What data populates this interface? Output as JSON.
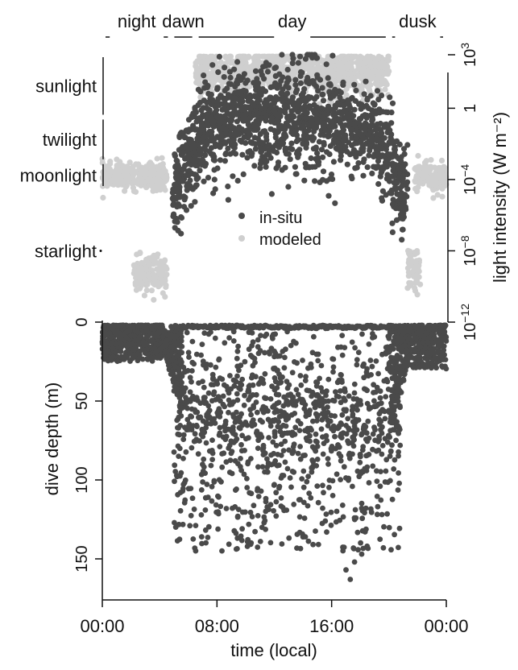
{
  "chart_data": [
    {
      "type": "scatter",
      "panel": "light",
      "phases": [
        {
          "label": "night",
          "start": 0.0,
          "end": 4.8
        },
        {
          "label": "dawn",
          "start": 4.8,
          "end": 6.5
        },
        {
          "label": "day",
          "start": 6.5,
          "end": 20.0
        },
        {
          "label": "dusk",
          "start": 20.0,
          "end": 24.0
        }
      ],
      "light_categories": [
        {
          "label": "sunlight",
          "range_log10": [
            -0.5,
            3
          ]
        },
        {
          "label": "twilight",
          "range_log10": [
            -3,
            -0.5
          ]
        },
        {
          "label": "moonlight",
          "range_log10": [
            -4.5,
            -3
          ]
        },
        {
          "label": "starlight",
          "range_log10": [
            -8,
            -8
          ]
        }
      ],
      "ylabel": "light intensity (W m⁻²)",
      "y_scale": "log10",
      "ylim_log10": [
        -12,
        3
      ],
      "yticks": [
        {
          "exp": 3,
          "label": "10",
          "sup": "3"
        },
        {
          "exp": 0,
          "label": "1",
          "sup": ""
        },
        {
          "exp": -4,
          "label": "10",
          "sup": "−4"
        },
        {
          "exp": -8,
          "label": "10",
          "sup": "−8"
        },
        {
          "exp": -12,
          "label": "10",
          "sup": "−12"
        }
      ],
      "legend": {
        "position": "center-right",
        "entries": [
          "in-situ",
          "modeled"
        ]
      },
      "series": [
        {
          "name": "in-situ",
          "color": "#4a4a4a",
          "profile": [
            {
              "x": 5.0,
              "mean": -4.5,
              "spread": 1.2
            },
            {
              "x": 6.0,
              "mean": -3.0,
              "spread": 1.5
            },
            {
              "x": 7.0,
              "mean": -1.3,
              "spread": 1.5
            },
            {
              "x": 9.0,
              "mean": -0.6,
              "spread": 1.3
            },
            {
              "x": 11.0,
              "mean": -0.4,
              "spread": 1.4
            },
            {
              "x": 13.0,
              "mean": -0.6,
              "spread": 1.5
            },
            {
              "x": 15.0,
              "mean": -0.7,
              "spread": 1.4
            },
            {
              "x": 17.0,
              "mean": -1.0,
              "spread": 1.3
            },
            {
              "x": 19.0,
              "mean": -1.5,
              "spread": 1.3
            },
            {
              "x": 20.0,
              "mean": -2.8,
              "spread": 1.4
            },
            {
              "x": 21.0,
              "mean": -4.8,
              "spread": 1.3
            }
          ],
          "range_x": [
            4.9,
            21.3
          ],
          "ymax_log10": 3
        },
        {
          "name": "modeled",
          "color": "#cfcfcf",
          "segments": [
            {
              "x": [
                0.0,
                4.5
              ],
              "mean": -3.8,
              "spread": 0.35
            },
            {
              "x": [
                2.2,
                4.5
              ],
              "mean": -9.3,
              "spread": 0.5
            },
            {
              "x": [
                21.8,
                24.0
              ],
              "mean": -3.9,
              "spread": 0.4
            },
            {
              "x": [
                21.3,
                22.2
              ],
              "mean": -9.0,
              "spread": 0.6
            },
            {
              "x": [
                6.5,
                20.0
              ],
              "mean": 2.0,
              "spread": 0.6
            }
          ]
        }
      ]
    },
    {
      "type": "scatter",
      "panel": "dive",
      "xlabel": "time (local)",
      "ylabel": "dive depth (m)",
      "xlim": [
        0,
        24
      ],
      "xticks": [
        {
          "value": 0,
          "label": "00:00"
        },
        {
          "value": 8,
          "label": "08:00"
        },
        {
          "value": 16,
          "label": "16:00"
        },
        {
          "value": 24,
          "label": "00:00"
        }
      ],
      "ylim": [
        0,
        180
      ],
      "yticks": [
        0,
        50,
        100,
        150
      ],
      "y_inverted": true,
      "series": [
        {
          "name": "dive depth",
          "color": "#4a4a4a",
          "night_band": {
            "x": [
              0,
              4.2
            ],
            "depth": [
              2,
              25
            ]
          },
          "dusk_band": {
            "x": [
              21.5,
              24
            ],
            "depth": [
              2,
              30
            ]
          },
          "surface_line_depth": 2,
          "day_depth_range": [
            5,
            165
          ],
          "deep_outliers": [
            [
              17.0,
              157
            ],
            [
              17.3,
              163
            ],
            [
              17.6,
              152
            ],
            [
              18.1,
              147
            ]
          ]
        }
      ]
    }
  ]
}
